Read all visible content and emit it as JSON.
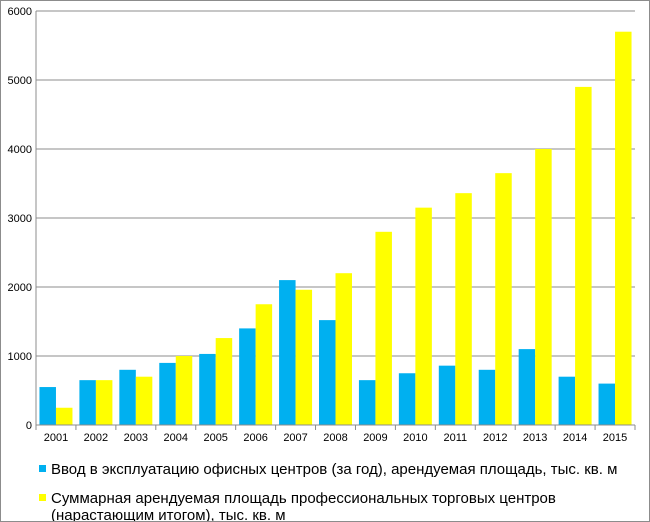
{
  "chart_data": {
    "type": "bar",
    "categories": [
      "2001",
      "2002",
      "2003",
      "2004",
      "2005",
      "2006",
      "2007",
      "2008",
      "2009",
      "2010",
      "2011",
      "2012",
      "2013",
      "2014",
      "2015"
    ],
    "series": [
      {
        "name": "Ввод в эксплуатацию офисных центров (за год), арендуемая площадь, тыс. кв. м",
        "color": "#00b0f0",
        "values": [
          550,
          650,
          800,
          900,
          1030,
          1400,
          2100,
          1520,
          650,
          750,
          860,
          800,
          1100,
          700,
          600
        ]
      },
      {
        "name": "Суммарная арендуемая площадь профессиональных торговых центров (нарастающим итогом), тыс. кв. м",
        "color": "#ffff00",
        "values": [
          250,
          650,
          700,
          1000,
          1260,
          1750,
          1960,
          2200,
          2800,
          3150,
          3360,
          3650,
          4000,
          4900,
          5700
        ]
      }
    ],
    "ylim": [
      0,
      6000
    ],
    "yticks": [
      "0",
      "1000",
      "2000",
      "3000",
      "4000",
      "5000",
      "6000"
    ],
    "grid": true,
    "legend_position": "bottom"
  }
}
